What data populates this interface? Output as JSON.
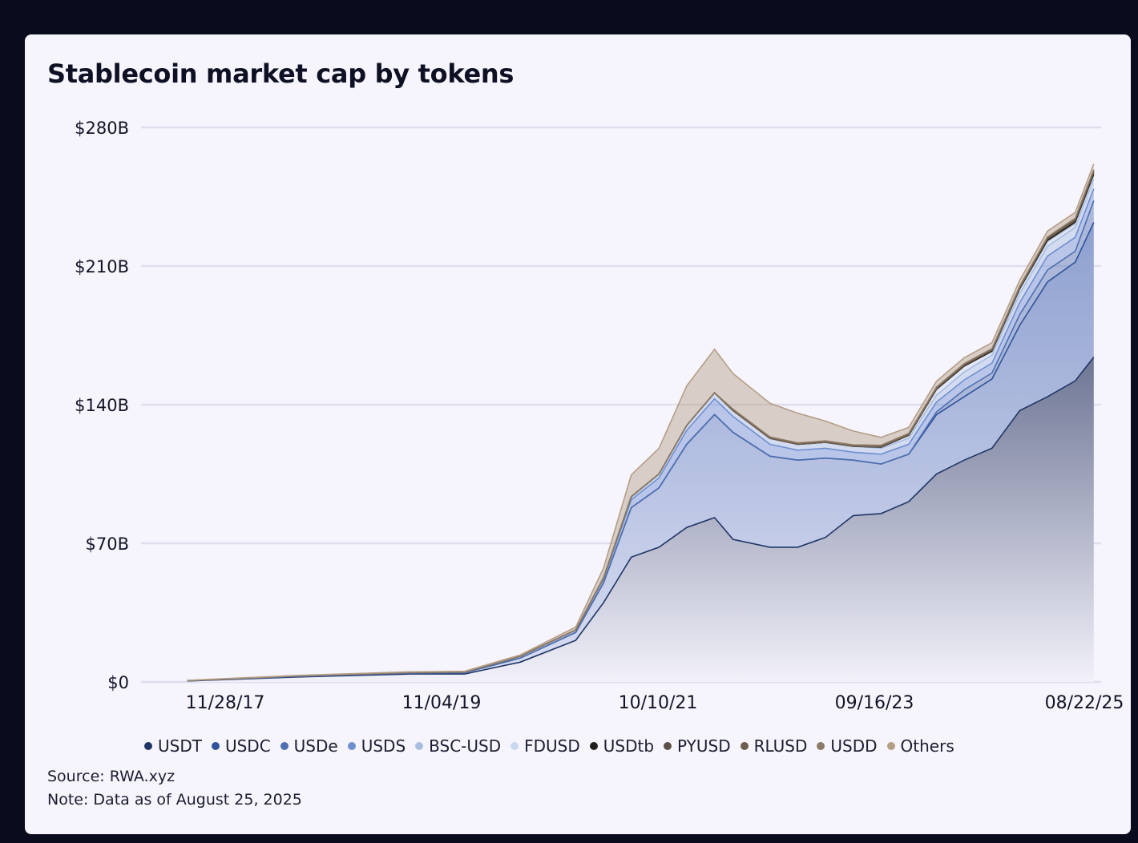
{
  "title": "Stablecoin market cap by tokens",
  "source": "Source: RWA.xyz",
  "note": "Note: Data as of August 25, 2025",
  "chart_data": {
    "type": "area",
    "stacked": true,
    "title": "Stablecoin market cap by tokens",
    "y_ticks": [
      "$0",
      "$70B",
      "$140B",
      "$210B",
      "$280B"
    ],
    "x_ticks": [
      "11/28/17",
      "11/04/19",
      "10/10/21",
      "09/16/23",
      "08/22/25"
    ],
    "ylim": [
      0,
      280
    ],
    "y_unit": "$B",
    "grid": true,
    "legend_position": "bottom",
    "x": [
      "2017-06",
      "2018-06",
      "2019-06",
      "2019-12",
      "2020-06",
      "2020-12",
      "2021-03",
      "2021-06",
      "2021-09",
      "2021-12",
      "2022-03",
      "2022-05",
      "2022-09",
      "2022-12",
      "2023-03",
      "2023-06",
      "2023-09",
      "2023-12",
      "2024-03",
      "2024-06",
      "2024-09",
      "2024-12",
      "2025-03",
      "2025-06",
      "2025-08"
    ],
    "series": [
      {
        "name": "USDT",
        "color": "#1f3566",
        "values": [
          0.5,
          2.5,
          4,
          4,
          10,
          21,
          40,
          63,
          68,
          78,
          83,
          72,
          68,
          68,
          73,
          84,
          85,
          91,
          105,
          112,
          118,
          137,
          144,
          152,
          164
        ]
      },
      {
        "name": "USDC",
        "color": "#2f539a",
        "values": [
          0.1,
          0.3,
          0.5,
          0.7,
          2,
          4,
          10,
          25,
          30,
          42,
          52,
          54,
          46,
          44,
          40,
          28,
          25,
          24,
          30,
          32,
          35,
          43,
          58,
          60,
          68
        ]
      },
      {
        "name": "USDe",
        "color": "#4f6fb0",
        "values": [
          0,
          0,
          0,
          0,
          0,
          0,
          0,
          0,
          0,
          0,
          0,
          0,
          0,
          0,
          0,
          0,
          0,
          0,
          1.3,
          3.5,
          3,
          5.5,
          6,
          5.5,
          11
        ]
      },
      {
        "name": "USDS",
        "color": "#6f8fd0",
        "values": [
          0.1,
          0.3,
          0.3,
          0.3,
          1,
          1.2,
          2,
          4,
          5,
          7,
          8,
          8,
          6,
          5,
          5,
          4,
          5,
          5,
          5,
          5,
          5,
          6,
          7,
          7,
          6
        ]
      },
      {
        "name": "BSC-USD",
        "color": "#a9bde0",
        "values": [
          0,
          0,
          0,
          0,
          0,
          0,
          0.5,
          1.5,
          2,
          2.5,
          3,
          3,
          3,
          3,
          3,
          3,
          3,
          3,
          3.5,
          4,
          4,
          4.5,
          5,
          5,
          5
        ]
      },
      {
        "name": "FDUSD",
        "color": "#c8d8f0",
        "values": [
          0,
          0,
          0,
          0,
          0,
          0,
          0,
          0,
          0,
          0,
          0,
          0,
          0,
          0,
          0,
          0,
          0.5,
          1.5,
          3,
          3,
          2,
          2,
          2,
          1.5,
          1.2
        ]
      },
      {
        "name": "USDtb",
        "color": "#221e1a",
        "values": [
          0,
          0,
          0,
          0,
          0,
          0,
          0,
          0,
          0,
          0,
          0,
          0,
          0,
          0,
          0,
          0,
          0,
          0,
          0,
          0,
          0,
          0.5,
          1,
          1.2,
          1.2
        ]
      },
      {
        "name": "PYUSD",
        "color": "#5a5048",
        "values": [
          0,
          0,
          0,
          0,
          0,
          0,
          0,
          0,
          0,
          0,
          0,
          0,
          0,
          0,
          0,
          0,
          0.3,
          0.3,
          0.4,
          0.5,
          0.6,
          0.5,
          0.8,
          0.9,
          1
        ]
      },
      {
        "name": "RLUSD",
        "color": "#6e5c4c",
        "values": [
          0,
          0,
          0,
          0,
          0,
          0,
          0,
          0,
          0,
          0,
          0,
          0,
          0,
          0,
          0,
          0,
          0,
          0,
          0,
          0,
          0,
          0.1,
          0.2,
          0.4,
          0.6
        ]
      },
      {
        "name": "USDD",
        "color": "#8b7b66",
        "values": [
          0,
          0,
          0,
          0,
          0,
          0,
          0,
          0,
          0,
          0,
          0,
          0.7,
          0.7,
          0.7,
          0.7,
          0.7,
          0.7,
          0.7,
          0.7,
          0.7,
          0.7,
          0.7,
          0.7,
          0.6,
          0.6
        ]
      },
      {
        "name": "Others",
        "color": "#b59e86",
        "values": [
          0.1,
          0.2,
          0.3,
          0.4,
          0.6,
          1.5,
          5,
          11,
          13,
          20,
          22,
          18,
          17,
          15,
          10,
          7,
          4,
          3,
          3,
          3,
          3,
          3,
          3,
          3,
          3
        ]
      }
    ]
  }
}
